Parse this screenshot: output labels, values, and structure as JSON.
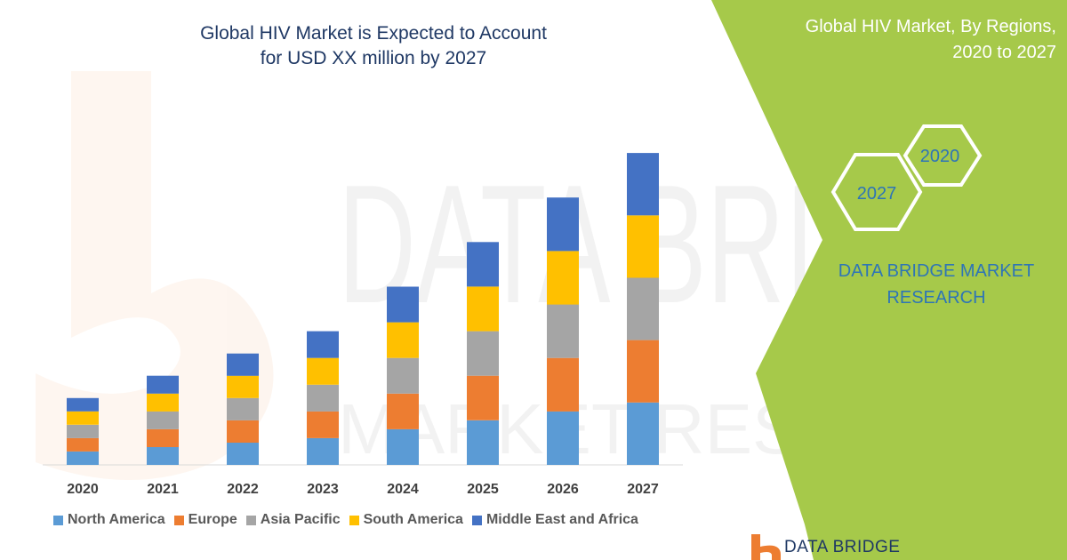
{
  "chart_data": {
    "type": "bar",
    "stacked": true,
    "title": "Global HIV Market is Expected to Account for USD XX million by 2027",
    "title_lines": [
      "Global HIV Market is Expected to Account",
      "for USD XX million by 2027"
    ],
    "xlabel": "",
    "ylabel": "",
    "categories": [
      "2020",
      "2021",
      "2022",
      "2023",
      "2024",
      "2025",
      "2026",
      "2027"
    ],
    "series": [
      {
        "name": "North America",
        "color": "#5b9bd5",
        "values": [
          15,
          20,
          25,
          30,
          40,
          50,
          60,
          70
        ]
      },
      {
        "name": "Europe",
        "color": "#ed7d31",
        "values": [
          15,
          20,
          25,
          30,
          40,
          50,
          60,
          70
        ]
      },
      {
        "name": "Asia Pacific",
        "color": "#a5a5a5",
        "values": [
          15,
          20,
          25,
          30,
          40,
          50,
          60,
          70
        ]
      },
      {
        "name": "South America",
        "color": "#ffc000",
        "values": [
          15,
          20,
          25,
          30,
          40,
          50,
          60,
          70
        ]
      },
      {
        "name": "Middle East and Africa",
        "color": "#4472c4",
        "values": [
          15,
          20,
          25,
          30,
          40,
          50,
          60,
          70
        ]
      }
    ],
    "ylim": [
      0,
      375
    ],
    "grid": false,
    "legend_position": "bottom"
  },
  "side_panel": {
    "title_lines": [
      "Global HIV Market, By Regions,",
      "2020 to 2027"
    ],
    "hex_small_label": "2020",
    "hex_large_label": "2027",
    "brand_lines": [
      "DATA BRIDGE MARKET",
      "RESEARCH"
    ],
    "color": "#a6c94a"
  },
  "footer": {
    "logo_text": "DATA BRIDGE"
  },
  "watermark": {
    "line1": "DATA BRIDGE",
    "line2": "MARKET RESEARCH"
  }
}
